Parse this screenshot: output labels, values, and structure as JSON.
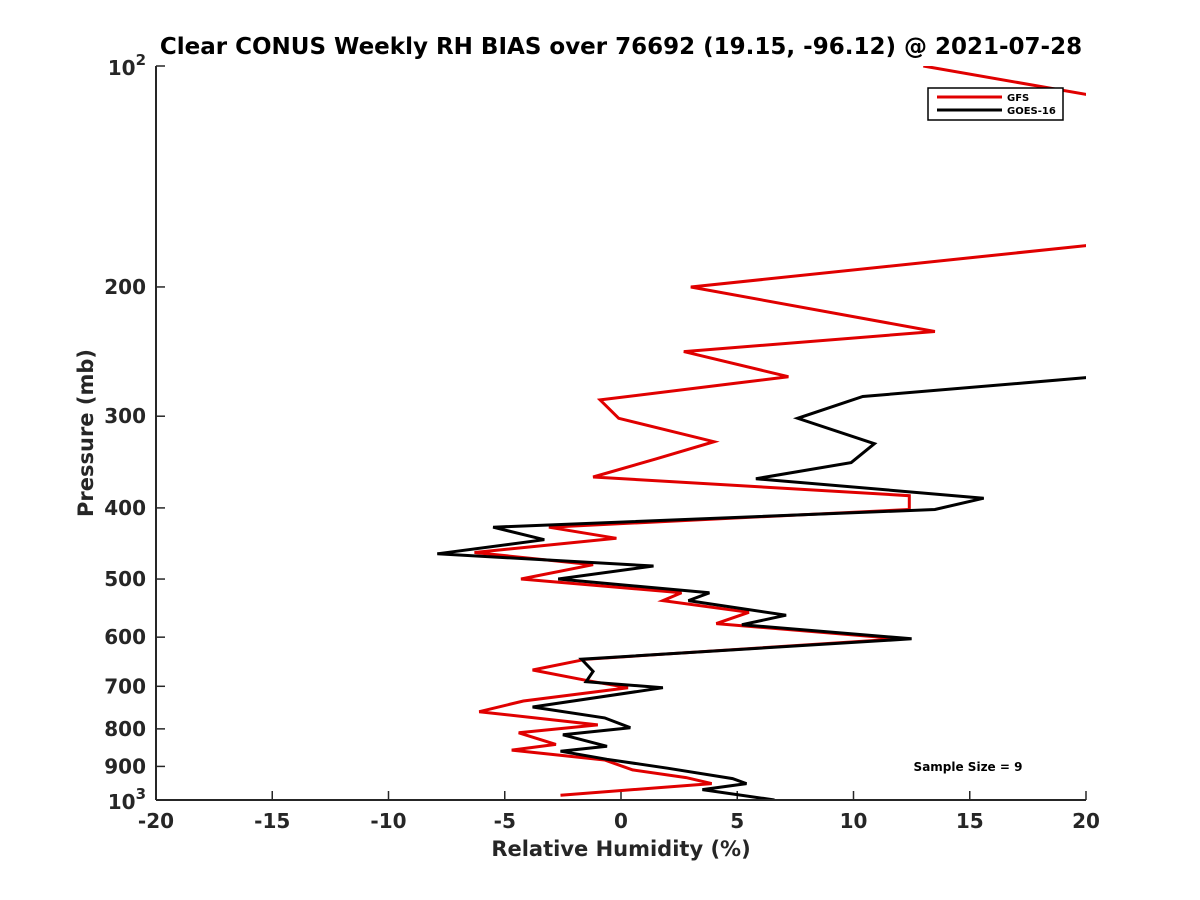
{
  "chart_data": {
    "type": "line",
    "orientation": "profile",
    "title": "Clear CONUS Weekly RH BIAS over 76692 (19.15, -96.12) @ 2021-07-28",
    "xlabel": "Relative Humidity (%)",
    "ylabel": "Pressure (mb)",
    "xlim": [
      -20,
      20
    ],
    "ylim": [
      100,
      1000
    ],
    "yscale": "log",
    "y_reversed": true,
    "x_ticks": [
      "-20",
      "-15",
      "-10",
      "-5",
      "0",
      "5",
      "10",
      "15",
      "20"
    ],
    "y_ticks": [
      {
        "value": 100,
        "base": "10",
        "exp": "2"
      },
      {
        "value": 200,
        "label": "200"
      },
      {
        "value": 300,
        "label": "300"
      },
      {
        "value": 400,
        "label": "400"
      },
      {
        "value": 500,
        "label": "500"
      },
      {
        "value": 600,
        "label": "600"
      },
      {
        "value": 700,
        "label": "700"
      },
      {
        "value": 800,
        "label": "800"
      },
      {
        "value": 900,
        "label": "900"
      },
      {
        "value": 1000,
        "base": "10",
        "exp": "3"
      }
    ],
    "legend": {
      "position": "top-right",
      "entries": [
        "GFS",
        "GOES-16"
      ]
    },
    "annotation": "Sample Size = 9",
    "series": [
      {
        "name": "GFS",
        "color": "#e00000",
        "points": [
          [
            13.0,
            100
          ],
          [
            20.5,
            110
          ],
          [
            20.5,
            175
          ],
          [
            3.0,
            200
          ],
          [
            13.5,
            230
          ],
          [
            2.7,
            245
          ],
          [
            7.2,
            265
          ],
          [
            -0.9,
            285
          ],
          [
            -0.1,
            302
          ],
          [
            4.0,
            325
          ],
          [
            1.5,
            343
          ],
          [
            -1.2,
            363
          ],
          [
            12.4,
            385
          ],
          [
            12.4,
            402
          ],
          [
            -3.1,
            425
          ],
          [
            -0.2,
            440
          ],
          [
            -6.3,
            460
          ],
          [
            -1.2,
            478
          ],
          [
            -4.3,
            500
          ],
          [
            2.6,
            522
          ],
          [
            1.8,
            535
          ],
          [
            5.5,
            555
          ],
          [
            4.1,
            575
          ],
          [
            12.0,
            603
          ],
          [
            -1.5,
            643
          ],
          [
            -3.8,
            665
          ],
          [
            -1.4,
            688
          ],
          [
            0.3,
            703
          ],
          [
            -4.2,
            733
          ],
          [
            -6.1,
            758
          ],
          [
            -1.0,
            790
          ],
          [
            -4.4,
            810
          ],
          [
            -2.8,
            840
          ],
          [
            -4.7,
            855
          ],
          [
            -0.7,
            882
          ],
          [
            0.5,
            910
          ],
          [
            2.8,
            932
          ],
          [
            3.9,
            950
          ],
          [
            -2.6,
            985
          ]
        ]
      },
      {
        "name": "GOES-16",
        "color": "#000000",
        "points": [
          [
            20.5,
            265
          ],
          [
            10.4,
            282
          ],
          [
            7.6,
            302
          ],
          [
            10.9,
            327
          ],
          [
            9.9,
            347
          ],
          [
            5.8,
            365
          ],
          [
            15.6,
            388
          ],
          [
            13.5,
            402
          ],
          [
            -5.5,
            425
          ],
          [
            -3.3,
            442
          ],
          [
            -7.9,
            462
          ],
          [
            1.4,
            480
          ],
          [
            -2.7,
            500
          ],
          [
            3.8,
            522
          ],
          [
            2.9,
            535
          ],
          [
            7.1,
            560
          ],
          [
            5.2,
            577
          ],
          [
            12.5,
            603
          ],
          [
            -1.7,
            643
          ],
          [
            -1.2,
            668
          ],
          [
            -1.5,
            690
          ],
          [
            1.8,
            703
          ],
          [
            -3.8,
            747
          ],
          [
            -0.7,
            773
          ],
          [
            0.4,
            797
          ],
          [
            -2.5,
            815
          ],
          [
            -0.6,
            845
          ],
          [
            -2.6,
            858
          ],
          [
            -0.6,
            880
          ],
          [
            2.0,
            905
          ],
          [
            4.8,
            935
          ],
          [
            5.4,
            950
          ],
          [
            3.5,
            968
          ],
          [
            6.6,
            1000
          ]
        ]
      }
    ]
  }
}
